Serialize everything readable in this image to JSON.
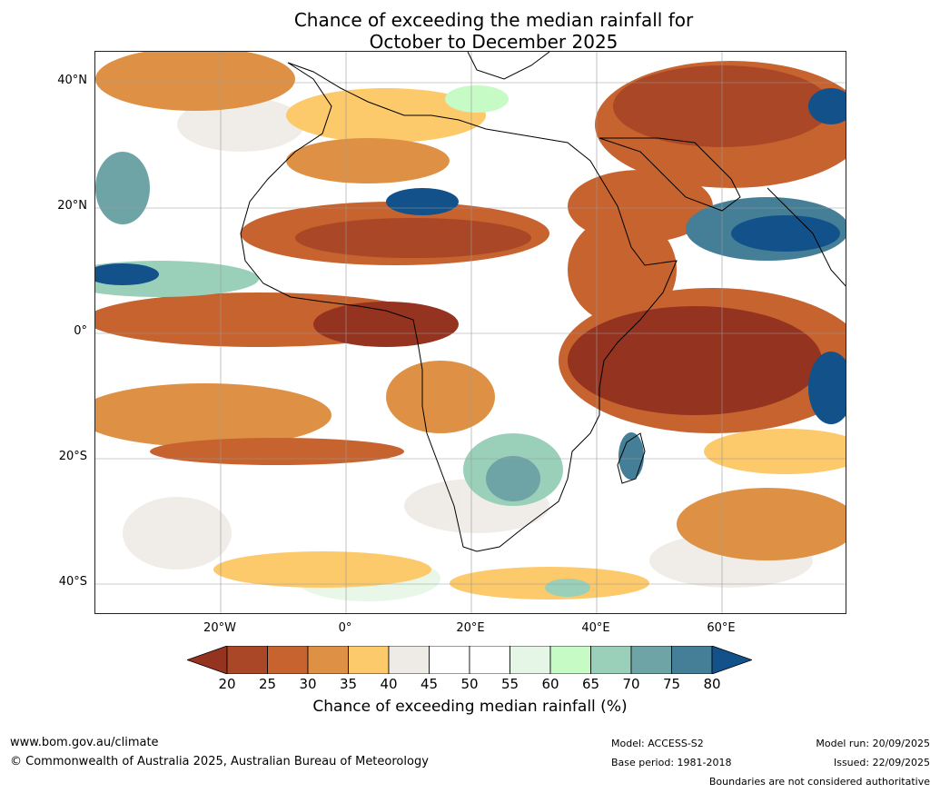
{
  "title": {
    "line1": "Chance of exceeding the median rainfall for",
    "line2": "October to December 2025"
  },
  "map": {
    "lat_labels": [
      "40°N",
      "20°N",
      "0°",
      "20°S",
      "40°S"
    ],
    "lon_labels": [
      "20°W",
      "0°",
      "20°E",
      "40°E",
      "60°E"
    ],
    "lon_range": [
      -40,
      80
    ],
    "lat_range": [
      -45,
      45
    ],
    "grid": true
  },
  "colorbar": {
    "ticks": [
      "20",
      "25",
      "30",
      "35",
      "40",
      "45",
      "50",
      "55",
      "60",
      "65",
      "70",
      "75",
      "80"
    ],
    "label": "Chance of exceeding median rainfall (%)",
    "colors": [
      "#943320",
      "#a94727",
      "#c6632f",
      "#de9144",
      "#fcc96b",
      "#eeebe6",
      "#ffffff",
      "#ffffff",
      "#e6f6e6",
      "#c6fbc6",
      "#9ad0b9",
      "#6ea4a6",
      "#447e97",
      "#12518a"
    ]
  },
  "footer": {
    "website": "www.bom.gov.au/climate",
    "copyright": "© Commonwealth of Australia 2025, Australian Bureau of Meteorology",
    "model": "Model: ACCESS-S2",
    "base_period": "Base period: 1981-2018",
    "model_run": "Model run: 20/09/2025",
    "issued": "Issued: 22/09/2025",
    "disclaimer": "Boundaries are not considered authoritative"
  }
}
